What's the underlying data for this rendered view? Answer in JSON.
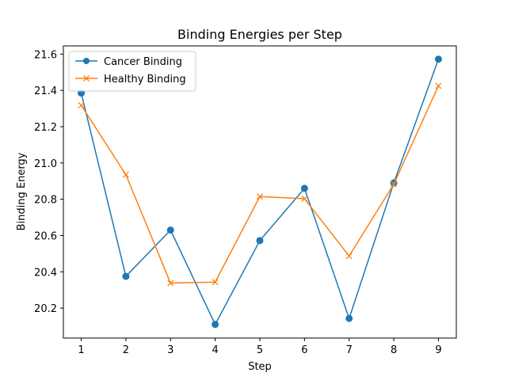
{
  "chart_data": {
    "type": "line",
    "title": "Binding Energies per Step",
    "xlabel": "Step",
    "ylabel": "Binding Energy",
    "x": [
      1,
      2,
      3,
      4,
      5,
      6,
      7,
      8,
      9
    ],
    "xlim": [
      0.6,
      9.4
    ],
    "ylim": [
      20.035,
      21.645
    ],
    "xticks": [
      1,
      2,
      3,
      4,
      5,
      6,
      7,
      8,
      9
    ],
    "yticks": [
      20.2,
      20.4,
      20.6,
      20.8,
      21.0,
      21.2,
      21.4,
      21.6
    ],
    "ytick_labels": [
      "20.2",
      "20.4",
      "20.6",
      "20.8",
      "21.0",
      "21.2",
      "21.4",
      "21.6"
    ],
    "grid": false,
    "legend_position": "upper-left",
    "series": [
      {
        "name": "Cancer Binding",
        "color": "#1f77b4",
        "marker": "circle",
        "values": [
          21.385,
          20.375,
          20.63,
          20.11,
          20.572,
          20.86,
          20.143,
          20.89,
          21.572
        ]
      },
      {
        "name": "Healthy Binding",
        "color": "#ff7f0e",
        "marker": "x",
        "values": [
          21.318,
          20.935,
          20.338,
          20.343,
          20.815,
          20.803,
          20.487,
          20.883,
          21.425
        ]
      }
    ]
  }
}
